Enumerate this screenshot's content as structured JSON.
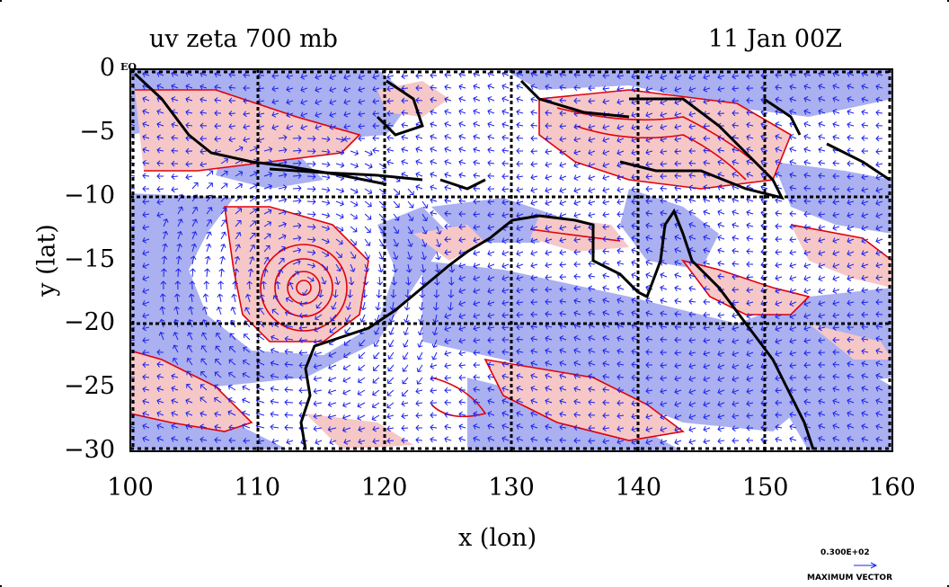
{
  "plot": {
    "title": "uv zeta 700 mb",
    "time": "11 Jan 00Z",
    "xlabel": "x (lon)",
    "ylabel": "y (lat)",
    "equator_label": "EQ",
    "legend_value": "0.300E+02",
    "legend_label": "MAXIMUM VECTOR"
  },
  "chart_data": {
    "type": "map",
    "title": "uv zeta 700 mb",
    "subtitle": "11 Jan 00Z",
    "xlabel": "x (lon)",
    "ylabel": "y (lat)",
    "xlim": [
      100,
      160
    ],
    "ylim": [
      -30,
      0
    ],
    "xticks": [
      "100",
      "110",
      "120",
      "130",
      "140",
      "150",
      "160"
    ],
    "yticks": [
      "0",
      "−5",
      "−10",
      "−15",
      "−20",
      "−25",
      "−30"
    ],
    "grid": true,
    "fields": [
      "vorticity (zeta) filled contours",
      "wind vectors (uv)"
    ],
    "colors": {
      "positive_fill": "#f6c7c7",
      "negative_fill": "#aab0f0",
      "contour_line": "#e0000a",
      "vector": "#1c22ee",
      "coast": "#000000"
    },
    "features": [
      {
        "name": "cyclone",
        "lon": 113.5,
        "lat": -17
      }
    ]
  }
}
